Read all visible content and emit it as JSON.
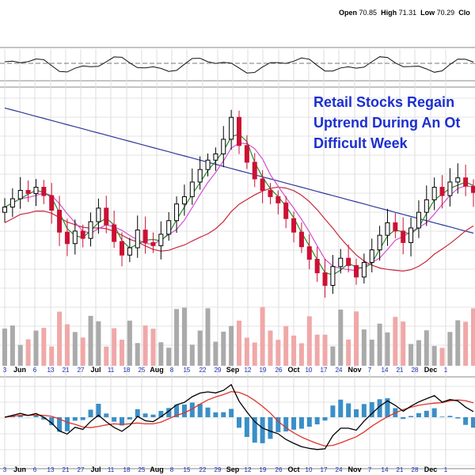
{
  "header": {
    "open_label": "Open",
    "open_value": "70.85",
    "high_label": "High",
    "high_value": "71.31",
    "low_label": "Low",
    "low_value": "70.29",
    "close_label": "Clo"
  },
  "headline": {
    "line1": "Retail Stocks Regain",
    "line2": "Uptrend During An Ot",
    "line3": "Difficult Week"
  },
  "chart_data": {
    "type": "candlestick",
    "x_tick_labels": [
      "3",
      "Jun",
      "6",
      "13",
      "21",
      "27",
      "Jul",
      "11",
      "18",
      "25",
      "Aug",
      "8",
      "15",
      "22",
      "29",
      "Sep",
      "12",
      "19",
      "26",
      "Oct",
      "10",
      "17",
      "24",
      "Nov",
      "7",
      "14",
      "21",
      "28",
      "Dec",
      "1"
    ],
    "highlighted_month_labels": [
      "Jun",
      "Jul",
      "Aug",
      "Sep",
      "Oct",
      "Nov",
      "Dec"
    ],
    "grid": true,
    "panels": [
      "rsi",
      "price",
      "volume",
      "macd"
    ],
    "price_panel": {
      "series": [
        {
          "values": [
            66.5,
            67.3,
            68.1,
            67.8,
            68.4,
            67.6,
            66.2,
            64.1,
            63.0,
            64.2,
            63.5,
            65.1,
            66.4,
            64.8,
            63.2,
            61.9,
            62.6,
            64.3,
            63.1,
            62.8,
            63.9,
            65.2,
            66.8,
            67.5,
            68.9,
            70.1,
            71.0,
            71.6,
            73.0,
            75.1,
            72.4,
            70.8,
            69.2,
            68.1,
            67.5,
            66.9,
            65.4,
            64.1,
            62.7,
            61.5,
            60.2,
            59.0,
            60.8,
            61.6,
            60.9,
            59.8,
            61.2,
            62.4,
            63.8,
            65.0,
            64.2,
            63.1,
            64.5,
            66.0,
            67.2,
            68.4,
            67.6,
            68.9,
            69.3,
            68.5,
            67.9
          ]
        }
      ]
    },
    "colors": {
      "up_candle": "#000000",
      "down_candle": "#cc1133",
      "ma_long": "#2b3a9a",
      "ma_mid": "#c8283c",
      "ma_short_green": "#2a8a2a",
      "ma_short_magenta": "#d24fd2",
      "volume_up": "#aaaaaa",
      "volume_down": "#f0a8a8",
      "macd_line": "#000000",
      "signal_line": "#e0342a",
      "histogram": "#3a8fc8",
      "headline": "#1c2fd0"
    }
  }
}
